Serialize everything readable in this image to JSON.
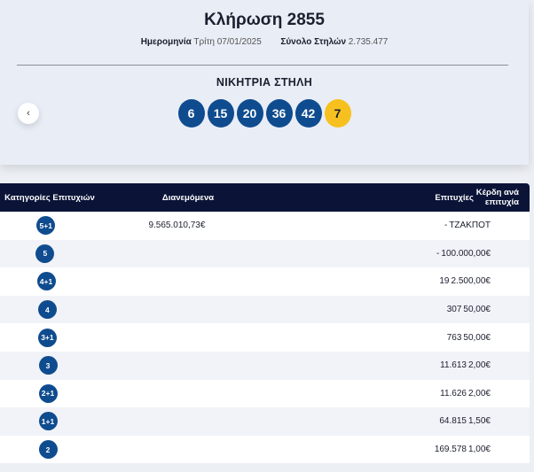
{
  "draw": {
    "title": "Κλήρωση 2855",
    "date_label": "Ημερομηνία",
    "date_value": "Τρίτη 07/01/2025",
    "columns_label": "Σύνολο Στηλών",
    "columns_value": "2.735.477",
    "winning_label": "ΝΙΚΗΤΡΙΑ ΣΤΗΛΗ",
    "numbers": [
      "6",
      "15",
      "20",
      "36",
      "42"
    ],
    "bonus": "7",
    "prev_icon": "‹"
  },
  "table": {
    "headers": [
      "Κατηγορίες Επιτυχιών",
      "Διανεμόμενα",
      "Επιτυχίες",
      "Κέρδη ανά επιτυχία"
    ],
    "rows": [
      {
        "cat": "5+1",
        "dist": "9.565.010,73€",
        "wins": "-",
        "prize": "ΤΖΑΚΠΟΤ"
      },
      {
        "cat": "5",
        "dist": "",
        "wins": "-",
        "prize": "100.000,00€"
      },
      {
        "cat": "4+1",
        "dist": "",
        "wins": "19",
        "prize": "2.500,00€"
      },
      {
        "cat": "4",
        "dist": "",
        "wins": "307",
        "prize": "50,00€"
      },
      {
        "cat": "3+1",
        "dist": "",
        "wins": "763",
        "prize": "50,00€"
      },
      {
        "cat": "3",
        "dist": "",
        "wins": "11.613",
        "prize": "2,00€"
      },
      {
        "cat": "2+1",
        "dist": "",
        "wins": "11.626",
        "prize": "2,00€"
      },
      {
        "cat": "1+1",
        "dist": "",
        "wins": "64.815",
        "prize": "1,50€"
      },
      {
        "cat": "2",
        "dist": "",
        "wins": "169.578",
        "prize": "1,00€"
      }
    ]
  },
  "colors": {
    "ball": "#0f4c8f",
    "bonus": "#f6c11f",
    "header": "#0b1437"
  }
}
